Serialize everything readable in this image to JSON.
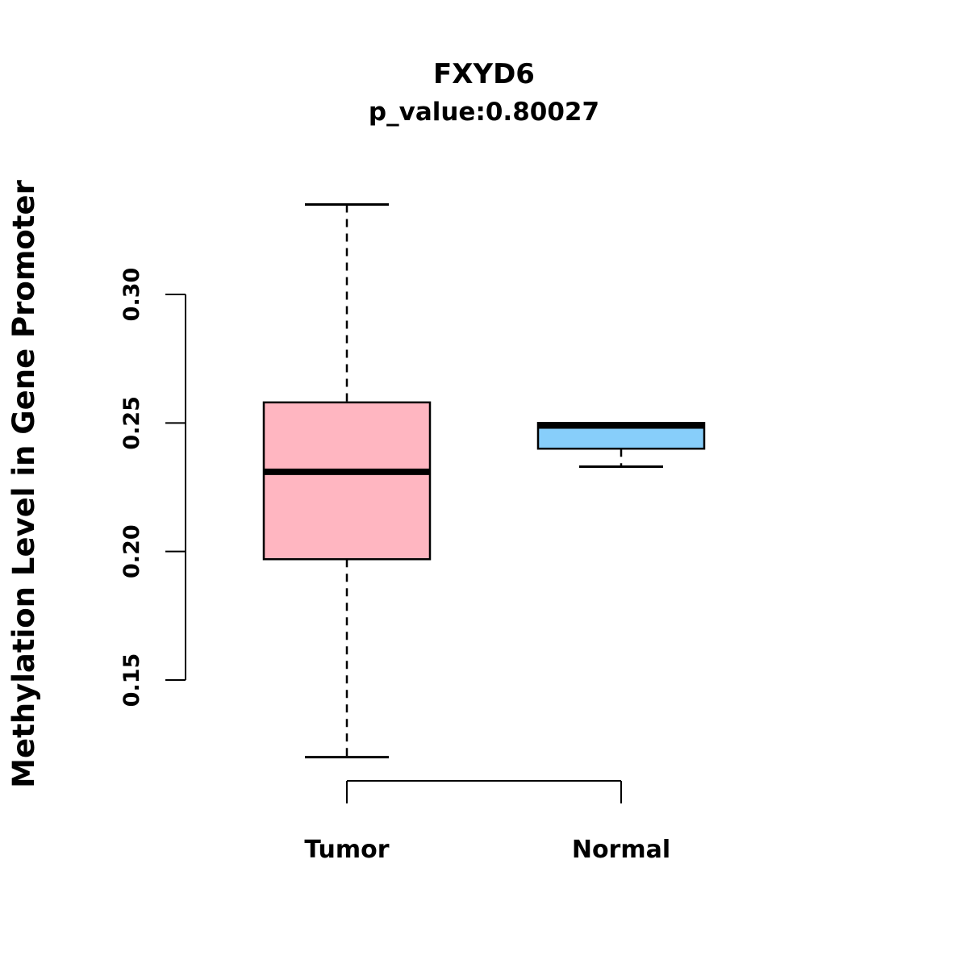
{
  "chart_data": {
    "type": "boxplot",
    "title": "FXYD6",
    "subtitle": "p_value:0.80027",
    "ylabel": "Methylation Level in Gene Promoter",
    "xlabel": "",
    "categories": [
      "Tumor",
      "Normal"
    ],
    "yticks": [
      0.15,
      0.2,
      0.25,
      0.3
    ],
    "ylim": [
      0.1,
      0.35
    ],
    "grid": false,
    "legend_position": "none",
    "series": [
      {
        "name": "Tumor",
        "color": "#FFB6C1",
        "min": 0.12,
        "q1": 0.197,
        "median": 0.231,
        "q3": 0.258,
        "max": 0.335
      },
      {
        "name": "Normal",
        "color": "#87CEFA",
        "min": 0.233,
        "q1": 0.24,
        "median": 0.249,
        "q3": 0.25,
        "max": 0.25
      }
    ]
  }
}
